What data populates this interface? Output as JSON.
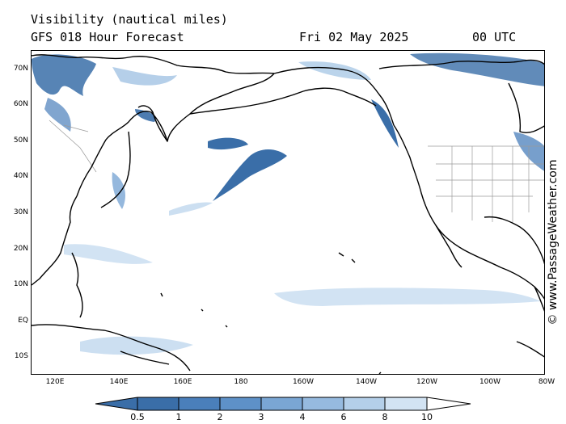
{
  "header": {
    "title": "Visibility (nautical miles)",
    "forecast": "GFS 018 Hour Forecast",
    "date": "Fri 02 May 2025",
    "time": "00 UTC"
  },
  "latitude_labels": [
    "70N",
    "60N",
    "50N",
    "40N",
    "30N",
    "20N",
    "10N",
    "EQ",
    "10S"
  ],
  "longitude_labels": [
    "120E",
    "140E",
    "160E",
    "180",
    "160W",
    "140W",
    "120W",
    "100W",
    "80W"
  ],
  "copyright": "© www.PassageWeather.com",
  "colorbar": {
    "labels": [
      "0.5",
      "1",
      "2",
      "3",
      "4",
      "6",
      "8",
      "10"
    ],
    "colors": [
      "#3a6ea8",
      "#4a7fbb",
      "#5e91c8",
      "#7aa6d4",
      "#96badf",
      "#b4cfe9",
      "#d2e3f3",
      "#ffffff"
    ]
  },
  "colors": {
    "low_visibility": "#3a6ea8",
    "mid_visibility": "#7aa6d4",
    "light_visibility": "#c6dbef",
    "coastline": "#000000",
    "borders": "#9a9a9a"
  }
}
